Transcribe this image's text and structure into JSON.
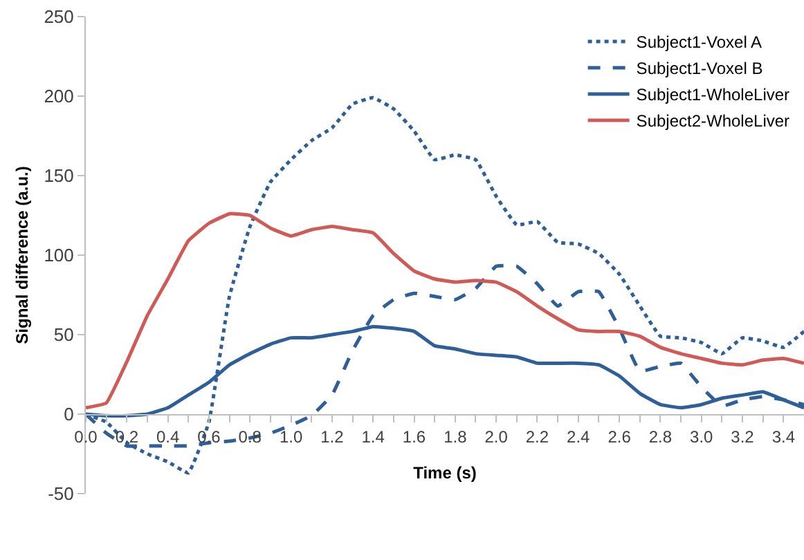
{
  "chart_data": {
    "type": "line",
    "xlabel": "Time (s)",
    "ylabel": "Signal difference (a.u.)",
    "x": [
      0.0,
      0.1,
      0.2,
      0.3,
      0.4,
      0.5,
      0.6,
      0.7,
      0.8,
      0.9,
      1.0,
      1.1,
      1.2,
      1.3,
      1.4,
      1.5,
      1.6,
      1.7,
      1.8,
      1.9,
      2.0,
      2.1,
      2.2,
      2.3,
      2.4,
      2.5,
      2.6,
      2.7,
      2.8,
      2.9,
      3.0,
      3.1,
      3.2,
      3.3,
      3.4,
      3.5
    ],
    "series": [
      {
        "name": "Subject1-Voxel A",
        "color": "#2f5f98",
        "line_style": "dotted",
        "values": [
          0,
          -5,
          -18,
          -25,
          -30,
          -37,
          -5,
          74,
          118,
          146,
          160,
          172,
          180,
          195,
          199,
          192,
          178,
          160,
          163,
          160,
          137,
          119,
          121,
          108,
          107,
          101,
          88,
          68,
          49,
          48,
          45,
          38,
          48,
          46,
          42,
          52
        ]
      },
      {
        "name": "Subject1-Voxel B",
        "color": "#2f5f98",
        "line_style": "dashed",
        "values": [
          0,
          -12,
          -20,
          -20,
          -20,
          -20,
          -18,
          -17,
          -15,
          -12,
          -7,
          -1,
          12,
          40,
          62,
          72,
          76,
          74,
          72,
          79,
          93,
          93,
          82,
          68,
          77,
          77,
          54,
          27,
          30,
          32,
          17,
          5,
          9,
          11,
          9,
          6
        ]
      },
      {
        "name": "Subject1-WholeLiver",
        "color": "#2f5f98",
        "line_style": "solid",
        "values": [
          0,
          -1,
          -1,
          0,
          4,
          12,
          20,
          31,
          38,
          44,
          48,
          48,
          50,
          52,
          55,
          54,
          52,
          43,
          41,
          38,
          37,
          36,
          32,
          32,
          32,
          31,
          24,
          13,
          6,
          4,
          6,
          10,
          12,
          14,
          9,
          4
        ]
      },
      {
        "name": "Subject2-WholeLiver",
        "color": "#d05a56",
        "line_style": "solid",
        "values": [
          4,
          7,
          33,
          62,
          85,
          109,
          120,
          126,
          125,
          117,
          112,
          116,
          118,
          116,
          114,
          101,
          90,
          85,
          83,
          84,
          83,
          77,
          68,
          60,
          53,
          52,
          52,
          49,
          42,
          38,
          35,
          32,
          31,
          34,
          35,
          32
        ]
      }
    ],
    "xlim": [
      0,
      3.5
    ],
    "xticks": [
      {
        "value": 0.0,
        "label": "0.0"
      },
      {
        "value": 0.1,
        "label": null
      },
      {
        "value": 0.2,
        "label": "0.2"
      },
      {
        "value": 0.3,
        "label": null
      },
      {
        "value": 0.4,
        "label": "0.4"
      },
      {
        "value": 0.5,
        "label": null
      },
      {
        "value": 0.6,
        "label": "0.6"
      },
      {
        "value": 0.7,
        "label": null
      },
      {
        "value": 0.8,
        "label": "0.8"
      },
      {
        "value": 0.9,
        "label": null
      },
      {
        "value": 1.0,
        "label": "1.0"
      },
      {
        "value": 1.1,
        "label": null
      },
      {
        "value": 1.2,
        "label": "1.2"
      },
      {
        "value": 1.3,
        "label": null
      },
      {
        "value": 1.4,
        "label": "1.4"
      },
      {
        "value": 1.5,
        "label": null
      },
      {
        "value": 1.6,
        "label": "1.6"
      },
      {
        "value": 1.7,
        "label": null
      },
      {
        "value": 1.8,
        "label": "1.8"
      },
      {
        "value": 1.9,
        "label": null
      },
      {
        "value": 2.0,
        "label": "2.0"
      },
      {
        "value": 2.1,
        "label": null
      },
      {
        "value": 2.2,
        "label": "2.2"
      },
      {
        "value": 2.3,
        "label": null
      },
      {
        "value": 2.4,
        "label": "2.4"
      },
      {
        "value": 2.5,
        "label": null
      },
      {
        "value": 2.6,
        "label": "2.6"
      },
      {
        "value": 2.7,
        "label": null
      },
      {
        "value": 2.8,
        "label": "2.8"
      },
      {
        "value": 2.9,
        "label": null
      },
      {
        "value": 3.0,
        "label": "3.0"
      },
      {
        "value": 3.1,
        "label": null
      },
      {
        "value": 3.2,
        "label": "3.2"
      },
      {
        "value": 3.3,
        "label": null
      },
      {
        "value": 3.4,
        "label": "3.4"
      }
    ],
    "ylim": [
      -50,
      250
    ],
    "yticks": [
      -50,
      0,
      50,
      100,
      150,
      200,
      250
    ],
    "legend": "top right",
    "marker": "none"
  }
}
